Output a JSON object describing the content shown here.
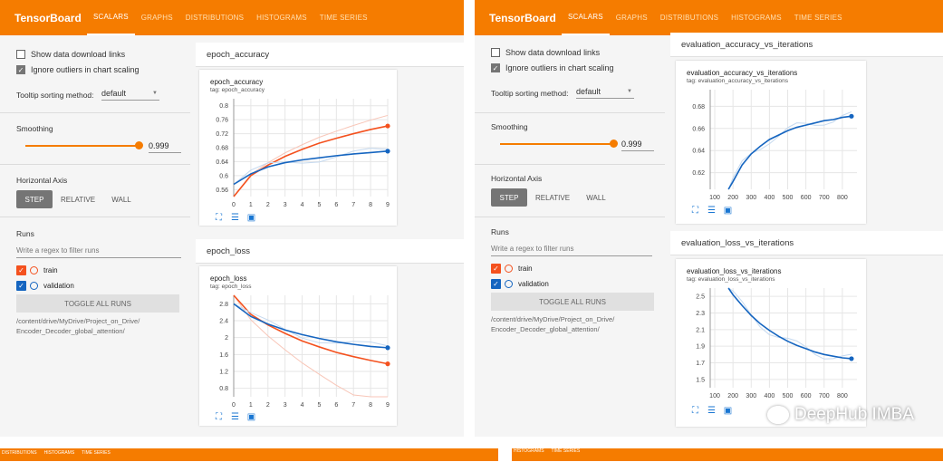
{
  "app": {
    "logo": "TensorBoard",
    "tabs": [
      "SCALARS",
      "GRAPHS",
      "DISTRIBUTIONS",
      "HISTOGRAMS",
      "TIME SERIES"
    ],
    "active_tab": "SCALARS",
    "accent_color": "#f57c00"
  },
  "sidebar": {
    "show_download_links": "Show data download links",
    "ignore_outliers": "Ignore outliers in chart scaling",
    "tooltip_label": "Tooltip sorting method:",
    "tooltip_value": "default",
    "smoothing_label": "Smoothing",
    "smoothing_value": "0.999",
    "horizontal_axis_label": "Horizontal Axis",
    "axis_buttons": [
      "STEP",
      "RELATIVE",
      "WALL"
    ],
    "runs_label": "Runs",
    "filter_placeholder": "Write a regex to filter runs",
    "runs": [
      {
        "name": "train",
        "color": "#f4511e"
      },
      {
        "name": "validation",
        "color": "#1565c0"
      }
    ],
    "toggle_all": "TOGGLE ALL RUNS",
    "path_line1": "/content/drive/MyDrive/Project_on_Drive/",
    "path_line2": "Encoder_Decoder_global_attention/"
  },
  "left_panel": {
    "group1": "epoch_accuracy",
    "card1_title": "epoch_accuracy",
    "card1_tag": "tag: epoch_accuracy",
    "group2": "epoch_loss",
    "card2_title": "epoch_loss",
    "card2_tag": "tag: epoch_loss"
  },
  "right_panel": {
    "group1": "evaluation_accuracy_vs_iterations",
    "card1_title": "evaluation_accuracy_vs_iterations",
    "card1_tag": "tag: evaluation_accuracy_vs_iterations",
    "group2": "evaluation_loss_vs_iterations",
    "card2_title": "evaluation_loss_vs_iterations",
    "card2_tag": "tag: evaluation_loss_vs_iterations"
  },
  "bottom_strip": {
    "left_tabs": [
      "DISTRIBUTIONS",
      "HISTOGRAMS",
      "TIME SERIES"
    ],
    "right_tabs": [
      "HISTOGRAMS",
      "TIME SERIES"
    ]
  },
  "watermark": "DeepHub IMBA",
  "chart_data": [
    {
      "type": "line",
      "title": "epoch_accuracy",
      "x": [
        0,
        1,
        2,
        3,
        4,
        5,
        6,
        7,
        8,
        9
      ],
      "xlim": [
        0,
        9
      ],
      "yticks": [
        0.56,
        0.6,
        0.64,
        0.68,
        0.72,
        0.76,
        0.8
      ],
      "ylim": [
        0.54,
        0.82
      ],
      "series": [
        {
          "name": "train",
          "values": [
            0.53,
            0.6,
            0.63,
            0.655,
            0.675,
            0.693,
            0.707,
            0.72,
            0.732,
            0.742
          ]
        },
        {
          "name": "validation",
          "values": [
            0.575,
            0.605,
            0.625,
            0.637,
            0.645,
            0.651,
            0.657,
            0.662,
            0.666,
            0.67
          ]
        }
      ]
    },
    {
      "type": "line",
      "title": "epoch_loss",
      "x": [
        0,
        1,
        2,
        3,
        4,
        5,
        6,
        7,
        8,
        9
      ],
      "xlim": [
        0,
        9
      ],
      "yticks": [
        0.8,
        1.2,
        1.6,
        2,
        2.4,
        2.8
      ],
      "ylim": [
        0.6,
        3.0
      ],
      "series": [
        {
          "name": "train",
          "values": [
            3.0,
            2.55,
            2.3,
            2.1,
            1.92,
            1.78,
            1.65,
            1.55,
            1.46,
            1.38
          ]
        },
        {
          "name": "validation",
          "values": [
            2.8,
            2.5,
            2.32,
            2.18,
            2.07,
            1.98,
            1.9,
            1.84,
            1.79,
            1.76
          ]
        }
      ]
    },
    {
      "type": "line",
      "title": "evaluation_accuracy_vs_iterations",
      "x": [
        175,
        200,
        250,
        300,
        350,
        400,
        450,
        500,
        550,
        600,
        650,
        700,
        750,
        800,
        850
      ],
      "xticks": [
        100,
        200,
        300,
        400,
        500,
        600,
        700,
        800
      ],
      "xlim": [
        75,
        880
      ],
      "yticks": [
        0.62,
        0.64,
        0.66,
        0.68
      ],
      "ylim": [
        0.605,
        0.695
      ],
      "series": [
        {
          "name": "validation",
          "values": [
            0.603,
            0.612,
            0.627,
            0.637,
            0.644,
            0.65,
            0.654,
            0.658,
            0.661,
            0.663,
            0.665,
            0.667,
            0.668,
            0.67,
            0.671
          ]
        }
      ]
    },
    {
      "type": "line",
      "title": "evaluation_loss_vs_iterations",
      "x": [
        175,
        200,
        250,
        300,
        350,
        400,
        450,
        500,
        550,
        600,
        650,
        700,
        750,
        800,
        850
      ],
      "xticks": [
        100,
        200,
        300,
        400,
        500,
        600,
        700,
        800
      ],
      "xlim": [
        75,
        880
      ],
      "yticks": [
        1.5,
        1.7,
        1.9,
        2.1,
        2.3,
        2.5
      ],
      "ylim": [
        1.4,
        2.6
      ],
      "series": [
        {
          "name": "validation",
          "values": [
            2.6,
            2.52,
            2.39,
            2.27,
            2.17,
            2.09,
            2.02,
            1.96,
            1.91,
            1.87,
            1.83,
            1.8,
            1.78,
            1.76,
            1.75
          ]
        }
      ]
    }
  ]
}
